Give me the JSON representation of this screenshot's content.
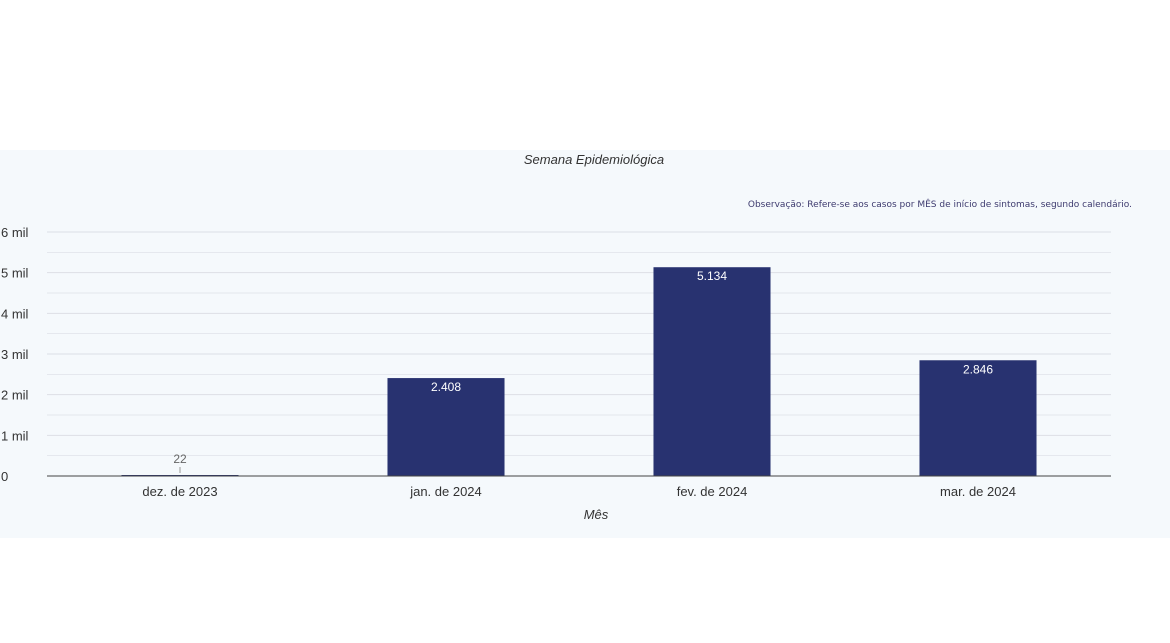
{
  "chart_data": {
    "type": "bar",
    "title": "Semana Epidemiológica",
    "note": "Observação: Refere-se aos casos por MÊS de início de sintomas, segundo calendário.",
    "xlabel": "Mês",
    "ylabel": "",
    "categories": [
      "dez. de 2023",
      "jan. de 2024",
      "fev. de 2024",
      "mar. de 2024"
    ],
    "values": [
      22,
      2408,
      5134,
      2846
    ],
    "value_labels": [
      "22",
      "2.408",
      "5.134",
      "2.846"
    ],
    "ylim": [
      0,
      6000
    ],
    "yticks": [
      0,
      1000,
      2000,
      3000,
      4000,
      5000,
      6000
    ],
    "ytick_labels": [
      "0",
      "1 mil",
      "2 mil",
      "3 mil",
      "4 mil",
      "5 mil",
      "6 mil"
    ],
    "grid": true,
    "colors": {
      "bar": "#283270",
      "grid": "#dcdfe6",
      "axis": "#444444",
      "background": "#f5f9fc"
    }
  }
}
